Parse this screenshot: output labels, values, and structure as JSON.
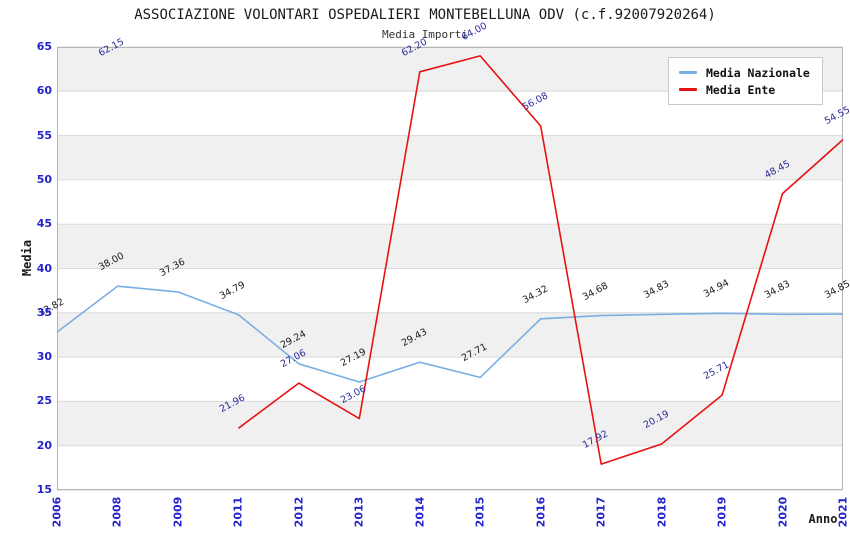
{
  "title": "ASSOCIAZIONE VOLONTARI OSPEDALIERI MONTEBELLUNA ODV (c.f.92007920264)",
  "subtitle": "Media Importi",
  "chart_data": {
    "type": "line",
    "title": "ASSOCIAZIONE VOLONTARI OSPEDALIERI MONTEBELLUNA ODV (c.f.92007920264)",
    "subtitle": "Media Importi",
    "xlabel": "Anno",
    "ylabel": "Media",
    "ylim": [
      15,
      65
    ],
    "ytick_step": 5,
    "yticks": [
      15,
      20,
      25,
      30,
      35,
      40,
      45,
      50,
      55,
      60,
      65
    ],
    "grid": "horizontal-bands-alternating",
    "legend_position": "top-right-inside",
    "categories": [
      "2006",
      "2008",
      "2009",
      "2011",
      "2012",
      "2013",
      "2014",
      "2015",
      "2016",
      "2017",
      "2018",
      "2019",
      "2020",
      "2021"
    ],
    "series": [
      {
        "name": "Media Nazionale",
        "color": "#7aafe4",
        "label_color": "#1a1a1a",
        "values": [
          32.82,
          38.0,
          37.36,
          34.79,
          29.24,
          27.19,
          29.43,
          27.71,
          34.32,
          34.68,
          34.83,
          34.94,
          34.83,
          34.85
        ]
      },
      {
        "name": "Media Ente",
        "color": "#e81212",
        "label_color": "#2a2a9e",
        "values": [
          null,
          62.15,
          null,
          21.96,
          27.06,
          23.06,
          62.2,
          64.0,
          56.08,
          17.92,
          20.19,
          25.71,
          48.45,
          54.55
        ]
      }
    ],
    "axis_tick_color": "#2323cb",
    "band_gray": "#f0f0f0",
    "gridline_color": "#dadada",
    "plot_border_color": "#b5b5b5"
  }
}
